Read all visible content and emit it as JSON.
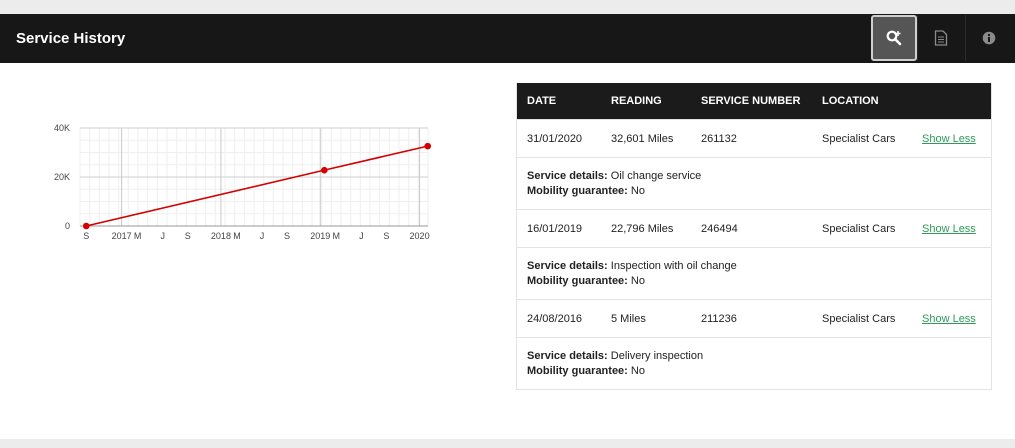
{
  "header": {
    "title": "Service History",
    "buttons": [
      {
        "name": "search-zoom-button",
        "icon": "search-plus-icon"
      },
      {
        "name": "document-button",
        "icon": "document-icon"
      },
      {
        "name": "info-button",
        "icon": "info-icon"
      }
    ]
  },
  "colors": {
    "header_bg": "#171717",
    "line": "#d40000",
    "link": "#2e9b5b"
  },
  "chart_data": {
    "type": "line",
    "x_ticks": [
      "S",
      "2017",
      "M",
      "J",
      "S",
      "2018",
      "M",
      "J",
      "S",
      "2019",
      "M",
      "J",
      "S",
      "2020"
    ],
    "y_ticks": [
      "0",
      "20K",
      "40K"
    ],
    "ylim": [
      0,
      40000
    ],
    "xlim": [
      "2016-08",
      "2020-02"
    ],
    "grid": true,
    "series": [
      {
        "points": [
          {
            "x": "2016-08-24",
            "y": 5
          },
          {
            "x": "2019-01-16",
            "y": 22796
          },
          {
            "x": "2020-01-31",
            "y": 32601
          }
        ]
      }
    ]
  },
  "table": {
    "columns": [
      "DATE",
      "READING",
      "SERVICE NUMBER",
      "LOCATION"
    ],
    "details_label": "Service details:",
    "mobility_label": "Mobility guarantee:",
    "rows": [
      {
        "date": "31/01/2020",
        "reading": "32,601 Miles",
        "number": "261132",
        "location": "Specialist Cars",
        "action": "Show Less",
        "details": "Oil change service",
        "mobility": "No"
      },
      {
        "date": "16/01/2019",
        "reading": "22,796 Miles",
        "number": "246494",
        "location": "Specialist Cars",
        "action": "Show Less",
        "details": "Inspection with oil change",
        "mobility": "No"
      },
      {
        "date": "24/08/2016",
        "reading": "5 Miles",
        "number": "211236",
        "location": "Specialist Cars",
        "action": "Show Less",
        "details": "Delivery inspection",
        "mobility": "No"
      }
    ]
  }
}
